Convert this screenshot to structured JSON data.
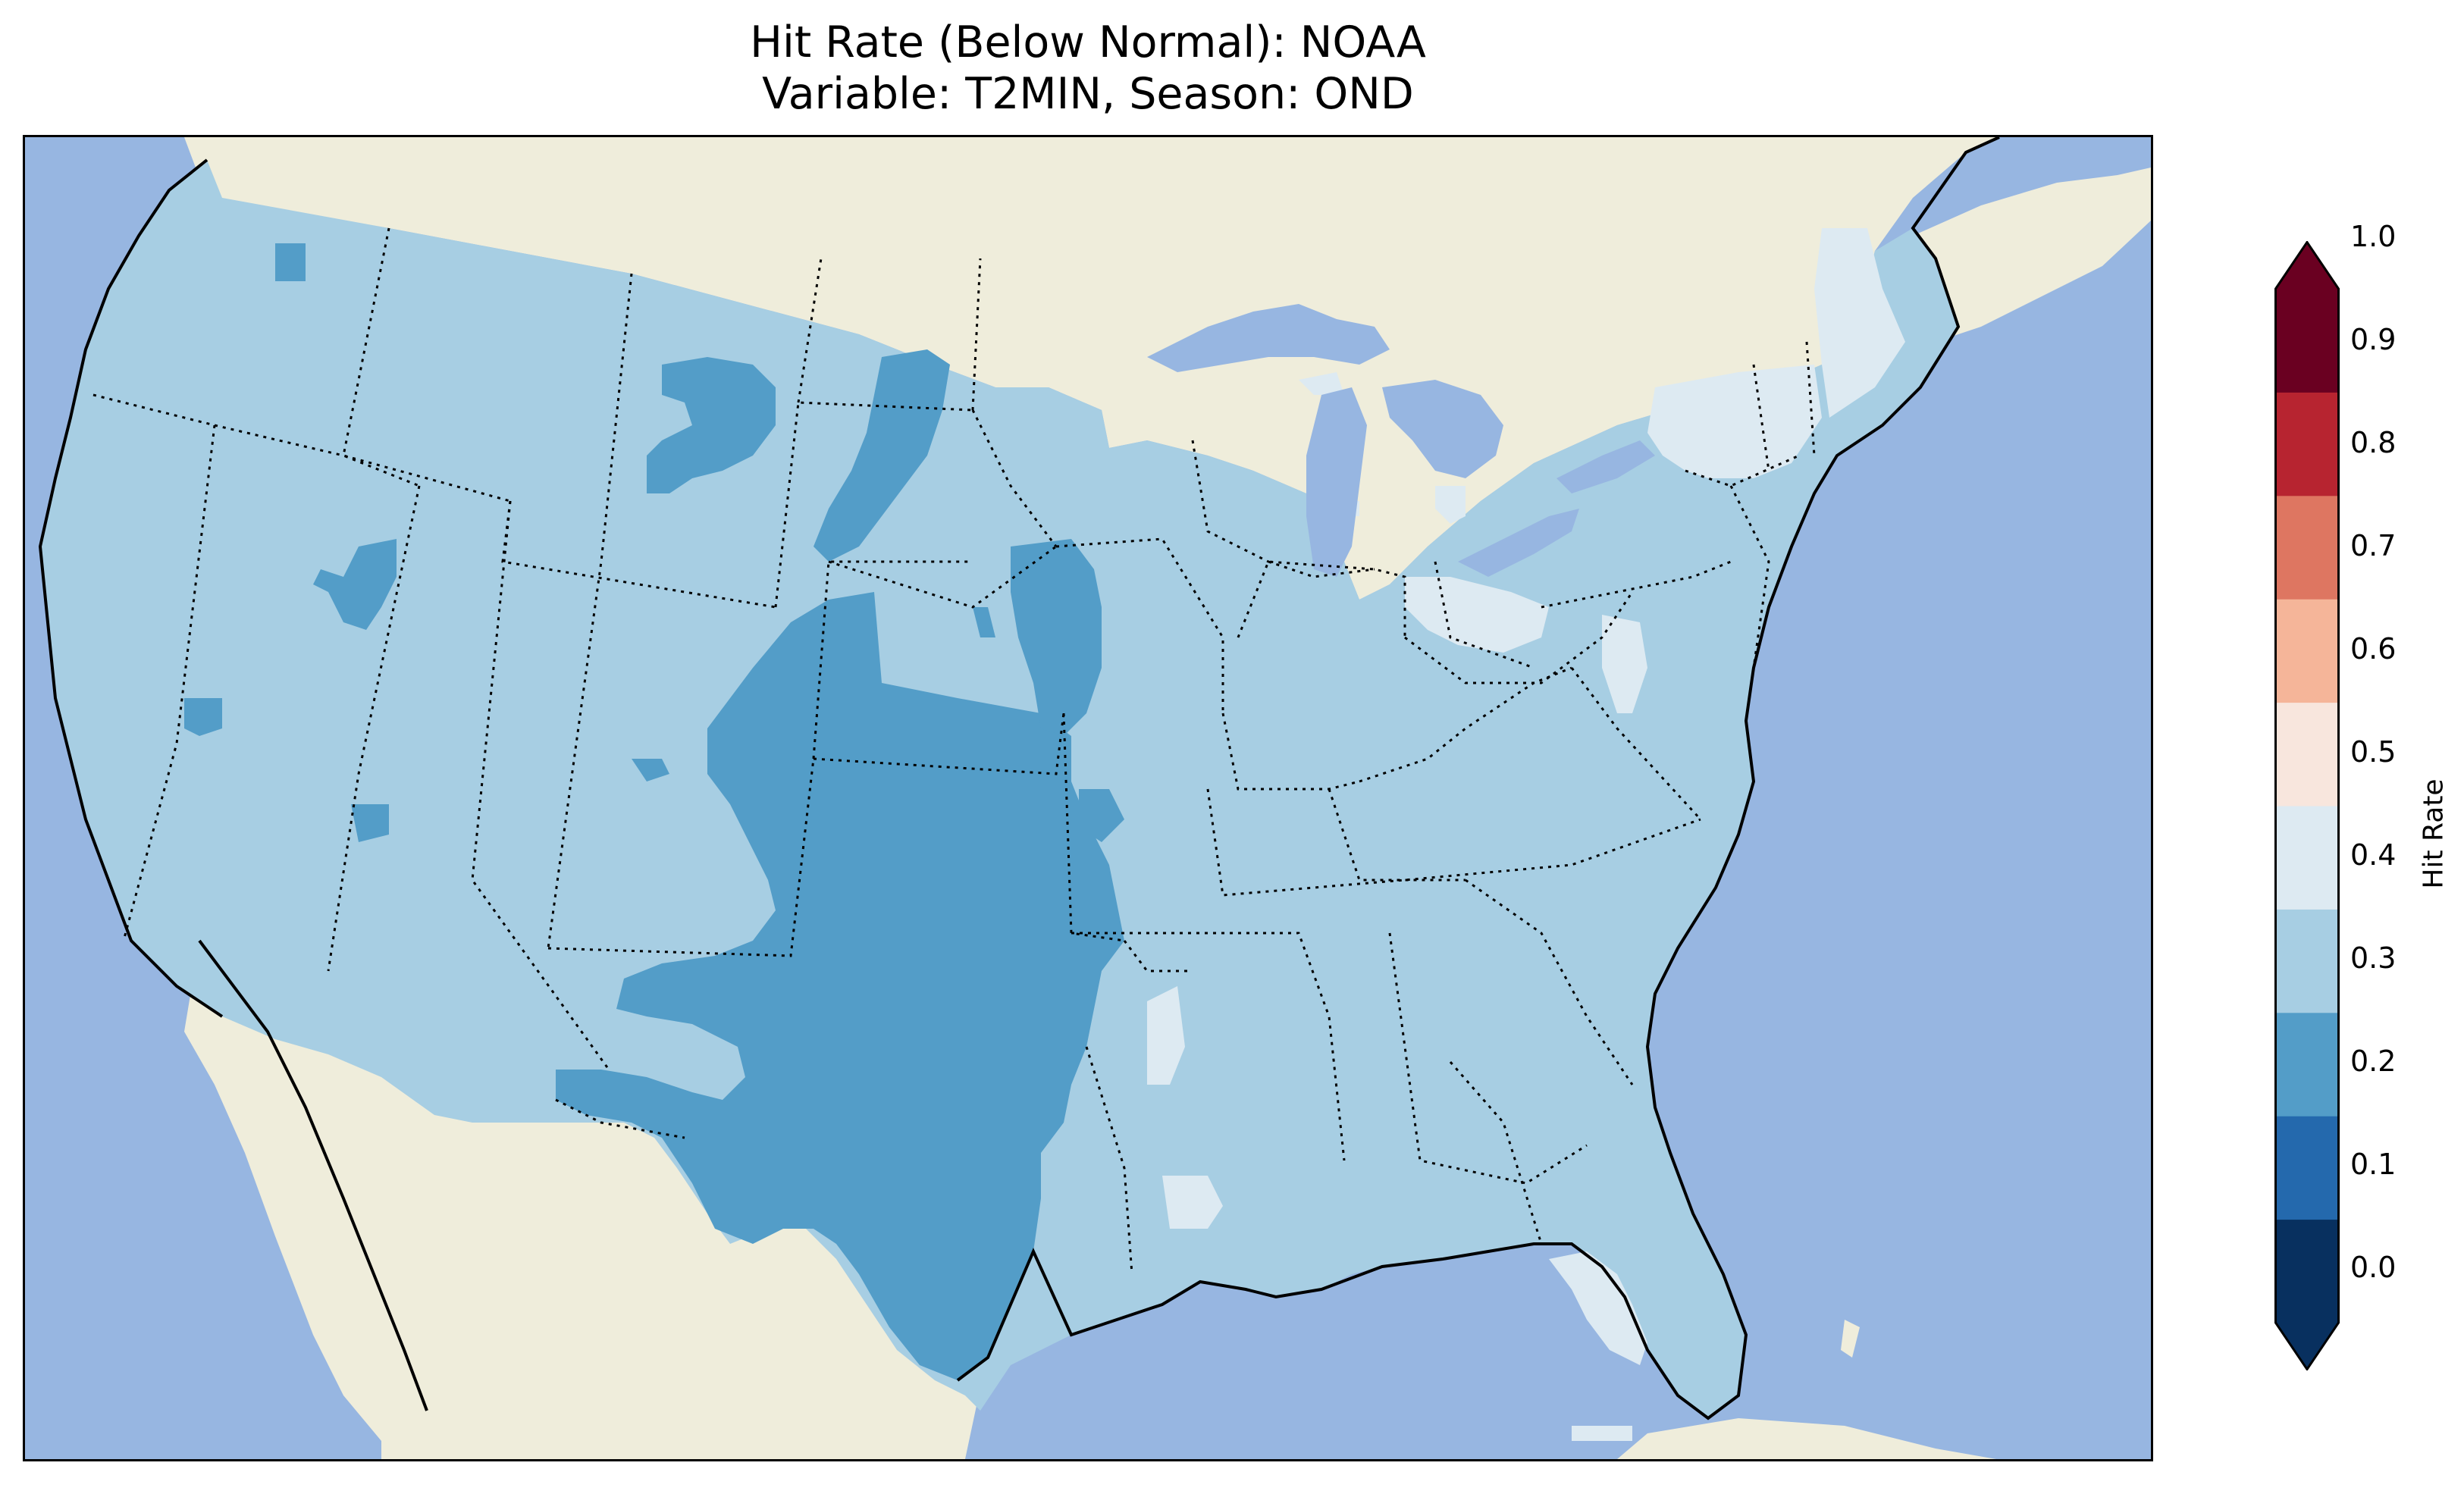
{
  "title": {
    "line1": "Hit Rate (Below Normal): NOAA",
    "line2": "Variable: T2MIN, Season: OND"
  },
  "map": {
    "projection": "lambert-conformal",
    "region": "CONUS",
    "colors": {
      "ocean": "#97b6e1",
      "land": "#efeddb",
      "class_0_2_0_3": "#539dc8",
      "class_0_3_0_4": "#a7cee3",
      "class_0_4_0_5": "#ddeaf2"
    },
    "dominant_value_range": [
      0.3,
      0.4
    ],
    "features": [
      "coastlines",
      "state-borders",
      "lakes"
    ]
  },
  "colorbar": {
    "label": "Hit Rate",
    "extend": "both",
    "boundaries": [
      0.0,
      0.1,
      0.2,
      0.3,
      0.4,
      0.5,
      0.6,
      0.7,
      0.8,
      0.9,
      1.0
    ],
    "tick_labels": [
      "0.0",
      "0.1",
      "0.2",
      "0.3",
      "0.4",
      "0.5",
      "0.6",
      "0.7",
      "0.8",
      "0.9",
      "1.0"
    ],
    "colors": [
      "#053061",
      "#2166ac",
      "#4393c3",
      "#92c5de",
      "#d1e5f0",
      "#fddbc7",
      "#f4a582",
      "#d6604d",
      "#b2182b",
      "#67001f"
    ],
    "colors_rendered": [
      "#08305f",
      "#2469ad",
      "#539dc8",
      "#a7cee3",
      "#ddeaf2",
      "#f8e6dd",
      "#f5b599",
      "#de7661",
      "#b72430",
      "#6a0021"
    ],
    "under_color": "#053061",
    "over_color": "#67001f"
  }
}
